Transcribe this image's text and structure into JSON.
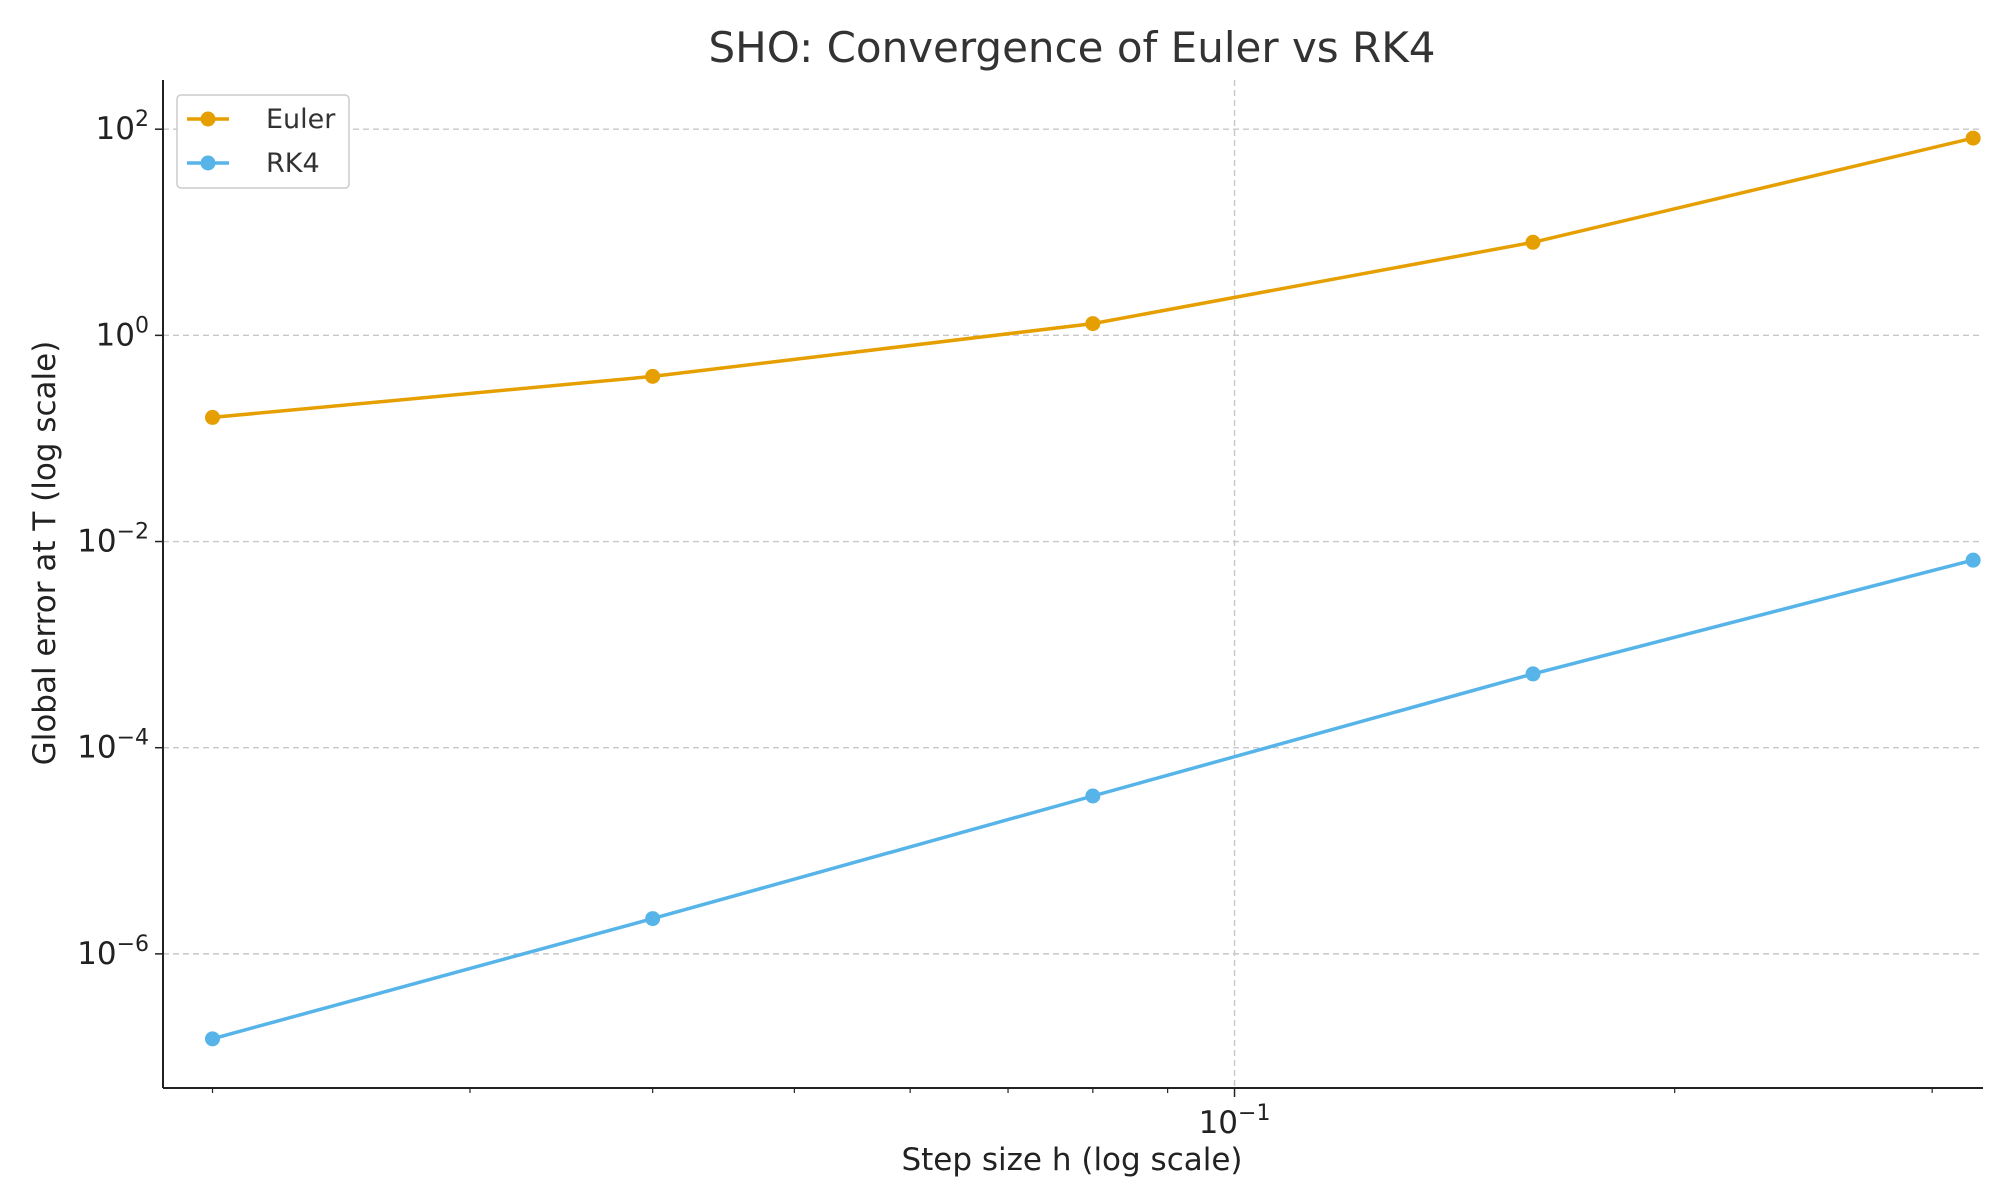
{
  "chart_data": {
    "type": "line",
    "title": "SHO: Convergence of Euler vs RK4",
    "xlabel": "Step size h (log scale)",
    "ylabel": "Global error at T (log scale)",
    "x_scale": "log",
    "y_scale": "log",
    "xlim": [
      0.0185,
      0.325
    ],
    "ylim": [
      5e-08,
      300
    ],
    "x": [
      0.02,
      0.04,
      0.08,
      0.16,
      0.32
    ],
    "series": [
      {
        "name": "Euler",
        "color": "#E69F00",
        "values": [
          0.16,
          0.4,
          1.3,
          8.0,
          82
        ]
      },
      {
        "name": "RK4",
        "color": "#56B4E9",
        "values": [
          1.5e-07,
          2.2e-06,
          3.4e-05,
          0.00052,
          0.0066
        ]
      }
    ],
    "y_ticks": [
      {
        "value": 1e-06,
        "base": "10",
        "exp": "−6"
      },
      {
        "value": 0.0001,
        "base": "10",
        "exp": "−4"
      },
      {
        "value": 0.01,
        "base": "10",
        "exp": "−2"
      },
      {
        "value": 1,
        "base": "10",
        "exp": "0"
      },
      {
        "value": 100,
        "base": "10",
        "exp": "2"
      }
    ],
    "x_ticks": [
      {
        "value": 0.1,
        "base": "10",
        "exp": "−1"
      }
    ],
    "x_minor_ticks": [
      0.02,
      0.03,
      0.04,
      0.05,
      0.06,
      0.07,
      0.08,
      0.09,
      0.2,
      0.3
    ],
    "grid": true,
    "legend_position": "top-left"
  }
}
